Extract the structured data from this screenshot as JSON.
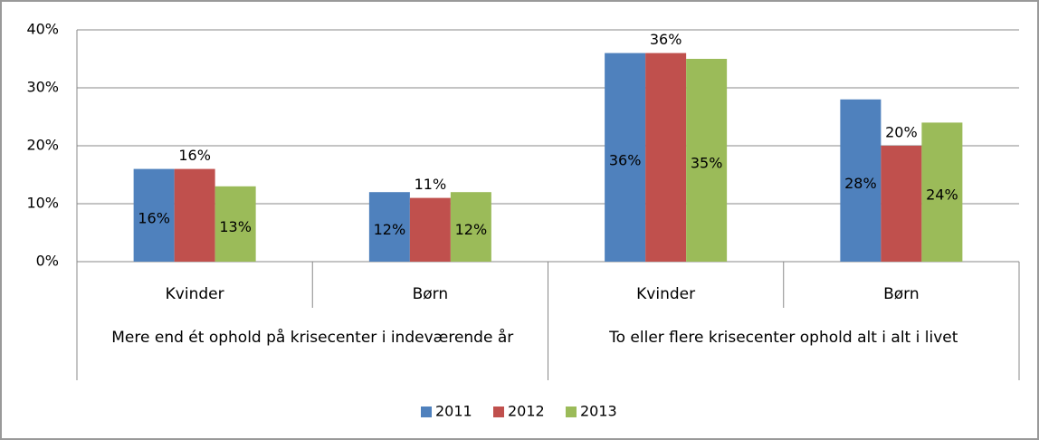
{
  "chart_data": {
    "type": "bar",
    "categories": [
      "Kvinder",
      "Børn",
      "Kvinder",
      "Børn"
    ],
    "groups": [
      "Mere end ét ophold på krisecenter i indeværende år",
      "To eller flere krisecenter ophold alt i alt i livet"
    ],
    "series": [
      {
        "name": "2011",
        "color": "#4f81bd",
        "values": [
          16,
          12,
          36,
          28
        ],
        "value_labels": [
          "16%",
          "12%",
          "36%",
          "28%"
        ]
      },
      {
        "name": "2012",
        "color": "#c0504d",
        "values": [
          16,
          11,
          36,
          20
        ],
        "value_labels": [
          "16%",
          "11%",
          "36%",
          "20%"
        ]
      },
      {
        "name": "2013",
        "color": "#9bbb59",
        "values": [
          13,
          12,
          35,
          24
        ],
        "value_labels": [
          "13%",
          "12%",
          "35%",
          "24%"
        ]
      }
    ],
    "ylim": [
      0,
      40
    ],
    "yticks": [
      {
        "value": 0,
        "label": "0%"
      },
      {
        "value": 10,
        "label": "10%"
      },
      {
        "value": 20,
        "label": "20%"
      },
      {
        "value": 30,
        "label": "30%"
      },
      {
        "value": 40,
        "label": "40%"
      }
    ],
    "grid": true,
    "legend": "bottom"
  }
}
